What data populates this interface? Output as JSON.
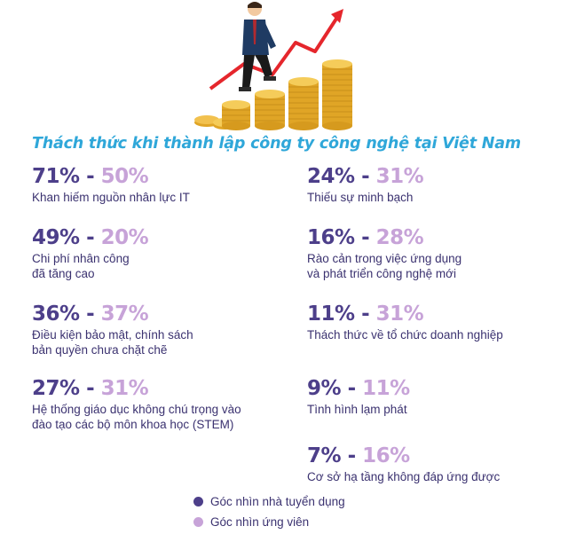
{
  "heading": "Thách thức khi thành lập công ty công nghệ tại Việt Nam",
  "colors": {
    "employer": "#4d3f8a",
    "candidate": "#c7a3d8",
    "heading": "#2fa7d9"
  },
  "chart_data": {
    "type": "table",
    "title": "Thách thức khi thành lập công ty công nghệ tại Việt Nam",
    "series": [
      {
        "name": "Góc nhìn nhà tuyển dụng",
        "color": "#4d3f8a"
      },
      {
        "name": "Góc nhìn ứng viên",
        "color": "#c7a3d8"
      }
    ],
    "items": [
      {
        "label": "Khan hiếm nguồn nhân lực IT",
        "employer": "71%",
        "candidate": "50%"
      },
      {
        "label": "Chi phí nhân công\nđã tăng cao",
        "employer": "49%",
        "candidate": "20%"
      },
      {
        "label": "Điều kiện bảo mật, chính sách\nbản quyền chưa chặt chẽ",
        "employer": "36%",
        "candidate": "37%"
      },
      {
        "label": "Hệ thống giáo dục không chú trọng vào\nđào tạo các bộ môn khoa học (STEM)",
        "employer": "27%",
        "candidate": "31%"
      },
      {
        "label": "Thiếu sự minh bạch",
        "employer": "24%",
        "candidate": "31%"
      },
      {
        "label": "Rào cản trong việc ứng dụng\nvà phát triển công nghệ mới",
        "employer": "16%",
        "candidate": "28%"
      },
      {
        "label": "Thách thức về tổ chức doanh nghiệp",
        "employer": "11%",
        "candidate": "31%"
      },
      {
        "label": "Tình hình lạm phát",
        "employer": "9%",
        "candidate": "11%"
      },
      {
        "label": "Cơ sở hạ tầng không đáp ứng được",
        "employer": "7%",
        "candidate": "16%"
      }
    ],
    "separator": "-"
  },
  "legend": [
    {
      "label": "Góc nhìn nhà tuyển dụng",
      "color": "#4d3f8a"
    },
    {
      "label": "Góc nhìn ứng viên",
      "color": "#c7a3d8"
    }
  ]
}
